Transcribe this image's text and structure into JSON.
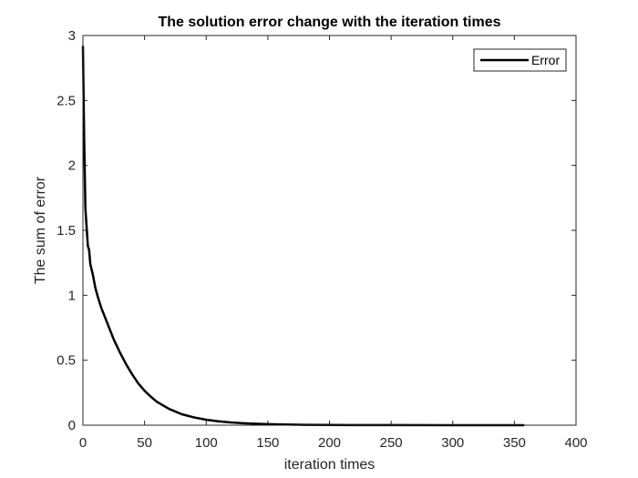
{
  "chart_data": {
    "type": "line",
    "title": "The solution error change with the iteration times",
    "xlabel": "iteration times",
    "ylabel": "The sum of error",
    "xlim": [
      0,
      400
    ],
    "ylim": [
      0,
      3
    ],
    "xticks": [
      0,
      50,
      100,
      150,
      200,
      250,
      300,
      350,
      400
    ],
    "yticks": [
      0,
      0.5,
      1,
      1.5,
      2,
      2.5,
      3
    ],
    "grid": false,
    "legend": "top-right",
    "series": [
      {
        "name": "Error",
        "color": "#000000",
        "x": [
          0,
          1,
          2,
          3,
          4,
          5,
          6,
          8,
          10,
          12,
          15,
          20,
          25,
          30,
          35,
          40,
          45,
          50,
          55,
          60,
          70,
          80,
          90,
          100,
          110,
          120,
          130,
          140,
          150,
          160,
          180,
          200,
          220,
          250,
          300,
          358
        ],
        "y": [
          2.92,
          2.2,
          1.67,
          1.52,
          1.38,
          1.35,
          1.24,
          1.16,
          1.06,
          0.99,
          0.9,
          0.78,
          0.66,
          0.56,
          0.47,
          0.39,
          0.32,
          0.265,
          0.22,
          0.18,
          0.125,
          0.085,
          0.06,
          0.042,
          0.03,
          0.021,
          0.015,
          0.011,
          0.008,
          0.006,
          0.003,
          0.002,
          0.001,
          0.0005,
          0.0002,
          0.0001
        ]
      }
    ]
  }
}
